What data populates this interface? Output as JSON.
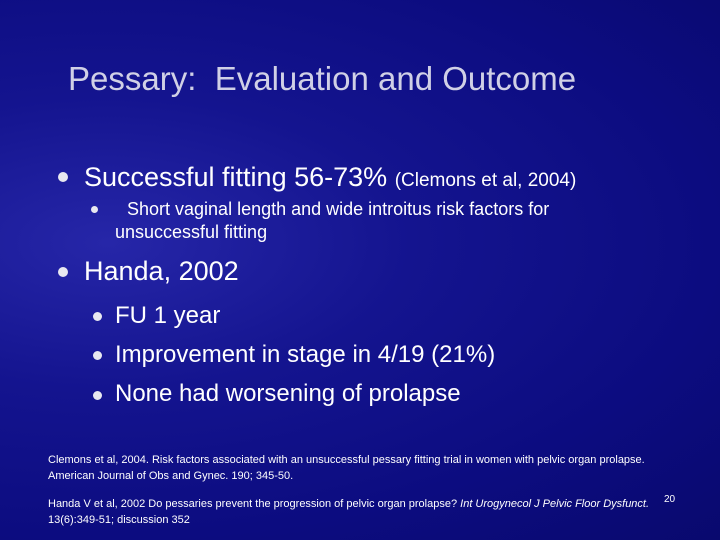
{
  "title": "Pessary:  Evaluation and Outcome",
  "bullets": [
    {
      "text": "Successful fitting 56-73%",
      "note": "(Clemons et al, 2004)",
      "sub": [
        "Short vaginal length and wide introitus risk factors for unsuccessful fitting"
      ]
    },
    {
      "text": "Handa, 2002",
      "sub": [
        "FU 1 year",
        "Improvement in stage in 4/19 (21%)",
        "None had worsening of prolapse"
      ]
    }
  ],
  "references": [
    {
      "parts": [
        "Clemons et al, 2004.  Risk factors associated with an unsuccessful pessary fitting trial in women with pelvic organ prolapse.  American Journal of Obs and Gynec. 190; 345-50."
      ]
    },
    {
      "parts": [
        "Handa V et al, 2002 Do pessaries prevent the progression of pelvic organ prolapse? ",
        "Int Urogynecol J Pelvic Floor Dysfunct.",
        " 13(6):349-51; discussion 352"
      ]
    }
  ],
  "page_number": 20
}
